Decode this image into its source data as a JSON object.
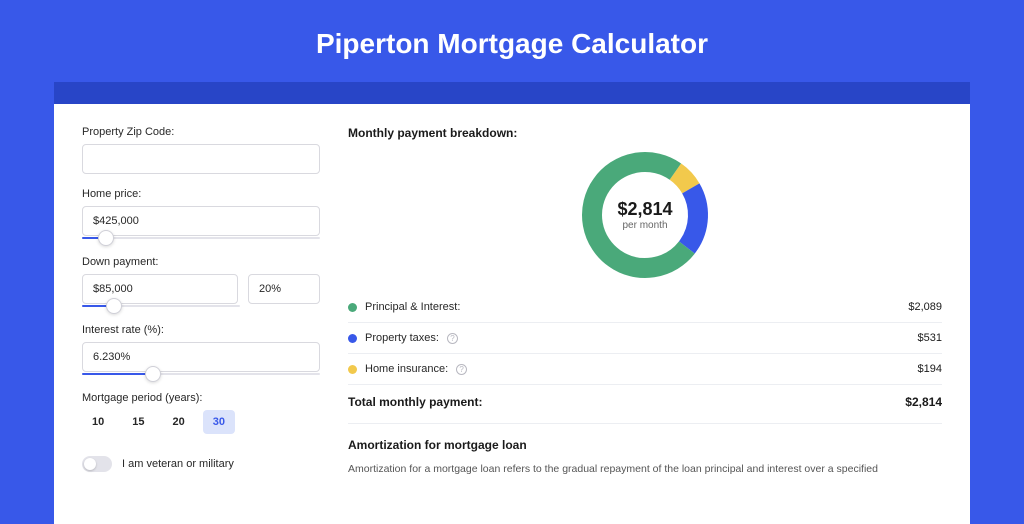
{
  "page": {
    "title": "Piperton Mortgage Calculator",
    "background_color": "#3858e9",
    "header_band_color": "#2845c7",
    "card_background": "#ffffff"
  },
  "form": {
    "zip": {
      "label": "Property Zip Code:",
      "value": ""
    },
    "price": {
      "label": "Home price:",
      "value": "$425,000",
      "slider_pct": 10
    },
    "down": {
      "label": "Down payment:",
      "value": "$85,000",
      "pct_value": "20%",
      "slider_pct": 20
    },
    "rate": {
      "label": "Interest rate (%):",
      "value": "6.230%",
      "slider_pct": 30
    },
    "period": {
      "label": "Mortgage period (years):",
      "options": [
        "10",
        "15",
        "20",
        "30"
      ],
      "selected": "30"
    },
    "veteran": {
      "label": "I am veteran or military",
      "on": false
    }
  },
  "breakdown": {
    "title": "Monthly payment breakdown:",
    "center_amount": "$2,814",
    "center_sub": "per month",
    "items": [
      {
        "key": "principal",
        "label": "Principal & Interest:",
        "amount": "$2,089",
        "value": 2089,
        "color": "#4aa97a",
        "info": false
      },
      {
        "key": "taxes",
        "label": "Property taxes:",
        "amount": "$531",
        "value": 531,
        "color": "#3858e9",
        "info": true
      },
      {
        "key": "insurance",
        "label": "Home insurance:",
        "amount": "$194",
        "value": 194,
        "color": "#f2c94c",
        "info": true
      }
    ],
    "total_label": "Total monthly payment:",
    "total_amount": "$2,814",
    "donut": {
      "stroke_width": 20,
      "radius": 53,
      "bg": "#ffffff"
    }
  },
  "amortization": {
    "title": "Amortization for mortgage loan",
    "text": "Amortization for a mortgage loan refers to the gradual repayment of the loan principal and interest over a specified"
  }
}
